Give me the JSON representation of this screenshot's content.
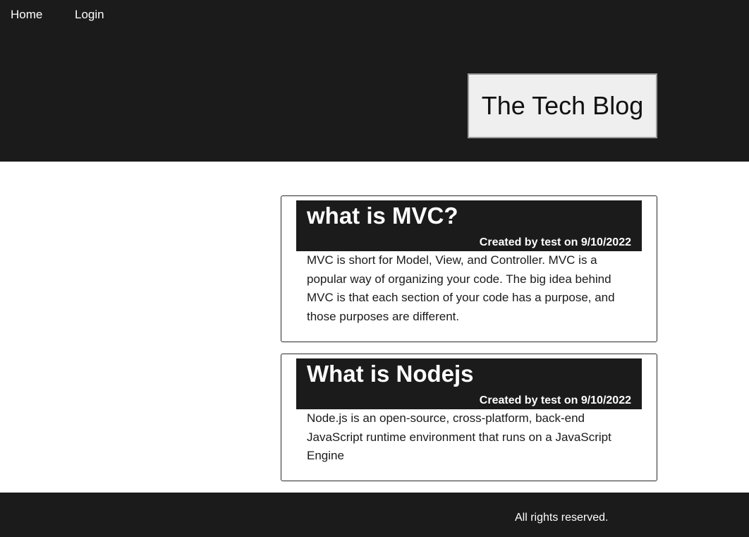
{
  "nav": {
    "home_label": "Home",
    "login_label": "Login"
  },
  "header": {
    "site_title": "The Tech Blog"
  },
  "posts": [
    {
      "title": "what is MVC?",
      "meta": "Created by test on 9/10/2022",
      "body": "MVC is short for Model, View, and Controller. MVC is a popular way of organizing your code. The big idea behind MVC is that each section of your code has a purpose, and those purposes are different."
    },
    {
      "title": "What is Nodejs",
      "meta": "Created by test on 9/10/2022",
      "body": "Node.js is an open-source, cross-platform, back-end JavaScript runtime environment that runs on a JavaScript Engine"
    }
  ],
  "footer": {
    "text": "All rights reserved."
  },
  "colors": {
    "header_bg": "#1b1b1b",
    "title_box_bg": "#efefef",
    "text_light": "#ffffff",
    "text_dark": "#111111"
  }
}
